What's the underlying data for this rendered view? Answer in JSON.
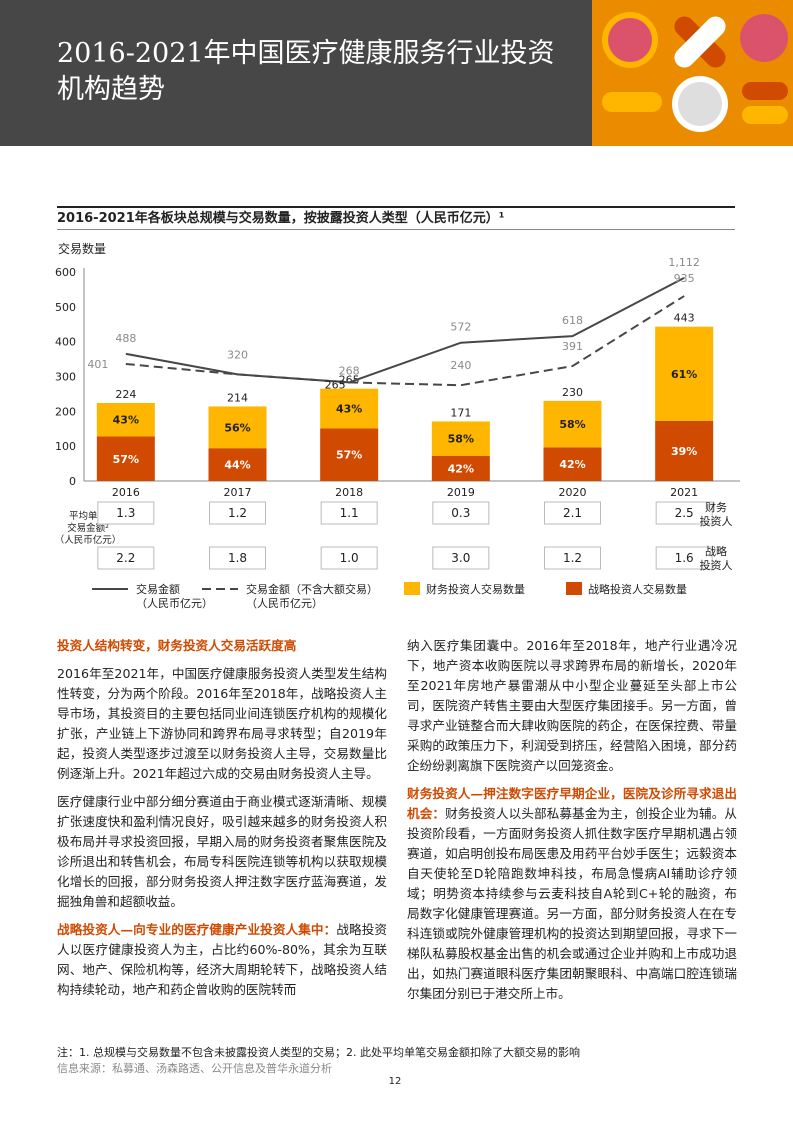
{
  "page": {
    "title": "2016-2021年中国医疗健康服务行业投资机构趋势",
    "page_number": "12"
  },
  "colors": {
    "header_bg": "#474747",
    "financial": "#ffb600",
    "strategic": "#d04a02",
    "line": "#474747",
    "accent_text": "#d04a02"
  },
  "chart_data": {
    "type": "bar",
    "title": "2016-2021年各板块总规模与交易数量，按披露投资人类型（人民币亿元）¹",
    "ylabel": "交易数量",
    "ylim": [
      0,
      600
    ],
    "yticks": [
      "0",
      "100",
      "200",
      "300",
      "400",
      "500",
      "600"
    ],
    "categories": [
      "2016",
      "2017",
      "2018",
      "2019",
      "2020",
      "2021"
    ],
    "totals": [
      224,
      214,
      265,
      171,
      230,
      443
    ],
    "total_labels": [
      "224",
      "214",
      "265",
      "171",
      "230",
      "443"
    ],
    "financial_share_labels": [
      "43%",
      "56%",
      "43%",
      "58%",
      "58%",
      "61%"
    ],
    "strategic_share_labels": [
      "57%",
      "44%",
      "57%",
      "42%",
      "42%",
      "39%"
    ],
    "financial_share": [
      0.43,
      0.56,
      0.43,
      0.58,
      0.58,
      0.61
    ],
    "strategic_share": [
      0.57,
      0.44,
      0.57,
      0.42,
      0.42,
      0.39
    ],
    "line_solid_values": [
      488,
      320,
      268,
      572,
      618,
      1112
    ],
    "line_solid_labels": [
      "488",
      "320",
      "268",
      "572",
      "618",
      "1,112"
    ],
    "line_solid_positions": [
      365,
      306,
      283,
      397,
      416,
      583
    ],
    "line_dashed_values": [
      401,
      320,
      265,
      240,
      391,
      935
    ],
    "line_dashed_labels": [
      "401",
      "",
      "",
      "240",
      "391",
      "935"
    ],
    "line_dashed_positions": [
      336,
      306,
      283,
      275,
      330,
      531
    ],
    "avg_label": "平均单笔\n交易金额²\n（人民币亿元）",
    "financial_avg": [
      "1.3",
      "1.2",
      "1.1",
      "0.3",
      "2.1",
      "2.5"
    ],
    "strategic_avg": [
      "2.2",
      "1.8",
      "1.0",
      "3.0",
      "1.2",
      "1.6"
    ],
    "row_label_financial": "财务\n投资人",
    "row_label_strategic": "战略\n投资人",
    "legend": {
      "solid": "交易金额\n（人民币亿元）",
      "dashed": "交易金额（不含大额交易）\n（人民币亿元）",
      "financial": "财务投资人交易数量",
      "strategic": "战略投资人交易数量"
    }
  },
  "text": {
    "left": {
      "heading1": "投资人结构转变，财务投资人交易活跃度高",
      "p1": "2016年至2021年，中国医疗健康服务投资人类型发生结构性转变，分为两个阶段。2016年至2018年，战略投资人主导市场，其投资目的主要包括同业间连锁医疗机构的规模化扩张，产业链上下游协同和跨界布局寻求转型；自2019年起，投资人类型逐步过渡至以财务投资人主导，交易数量比例逐渐上升。2021年超过六成的交易由财务投资人主导。",
      "p2": "医疗健康行业中部分细分赛道由于商业模式逐渐清晰、规模扩张速度快和盈利情况良好，吸引越来越多的财务投资人积极布局并寻求投资回报，早期入局的财务投资者聚焦医院及诊所退出和转售机会，布局专科医院连锁等机构以获取规模化增长的回报，部分财务投资人押注数字医疗蓝海赛道，发掘独角兽和超额收益。",
      "heading2": "战略投资人—向专业的医疗健康产业投资人集中：",
      "p3": "战略投资人以医疗健康投资人为主，占比约60%-80%，其余为互联网、地产、保险机构等，经济大周期轮转下，战略投资人结构持续轮动，地产和药企曾收购的医院转而"
    },
    "right": {
      "p1": "纳入医疗集团囊中。2016年至2018年，地产行业遇冷况下，地产资本收购医院以寻求跨界布局的新增长，2020年至2021年房地产暴雷潮从中小型企业蔓延至头部上市公司，医院资产转售主要由大型医疗集团接手。另一方面，曾寻求产业链整合而大肆收购医院的药企，在医保控费、带量采购的政策压力下，利润受到挤压，经营陷入困境，部分药企纷纷剥离旗下医院资产以回笼资金。",
      "heading3": "财务投资人—押注数字医疗早期企业，医院及诊所寻求退出机会：",
      "p2": "财务投资人以头部私募基金为主，创投企业为辅。从投资阶段看，一方面财务投资人抓住数字医疗早期机遇占领赛道，如启明创投布局医患及用药平台妙手医生；远毅资本自天使轮至D轮陪跑数坤科技，布局急慢病AI辅助诊疗领域；明势资本持续参与云麦科技自A轮到C+轮的融资，布局数字化健康管理赛道。另一方面，部分财务投资人在在专科连锁或院外健康管理机构的投资达到期望回报，寻求下一梯队私募股权基金出售的机会或通过企业并购和上市成功退出，如热门赛道眼科医疗集团朝聚眼科、中高端口腔连锁瑞尔集团分别已于港交所上市。"
    }
  },
  "footnote": "注：1. 总规模与交易数量不包含未披露投资人类型的交易；2.  此处平均单笔交易金额扣除了大额交易的影响",
  "source": "信息来源：私募通、汤森路透、公开信息及普华永道分析"
}
